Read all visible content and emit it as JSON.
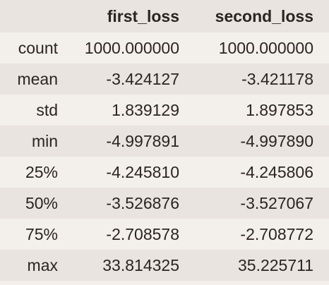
{
  "table": {
    "columns": [
      "first_loss",
      "second_loss"
    ],
    "rows": [
      {
        "label": "count",
        "values": [
          "1000.000000",
          "1000.000000"
        ]
      },
      {
        "label": "mean",
        "values": [
          "-3.424127",
          "-3.421178"
        ]
      },
      {
        "label": "std",
        "values": [
          "1.839129",
          "1.897853"
        ]
      },
      {
        "label": "min",
        "values": [
          "-4.997891",
          "-4.997890"
        ]
      },
      {
        "label": "25%",
        "values": [
          "-4.245810",
          "-4.245806"
        ]
      },
      {
        "label": "50%",
        "values": [
          "-3.526876",
          "-3.527067"
        ]
      },
      {
        "label": "75%",
        "values": [
          "-2.708578",
          "-2.708772"
        ]
      },
      {
        "label": "max",
        "values": [
          "33.814325",
          "35.225711"
        ]
      }
    ]
  },
  "colors": {
    "background": "#f3efeb",
    "stripe": "#e9e4df",
    "text": "#2b2522"
  }
}
